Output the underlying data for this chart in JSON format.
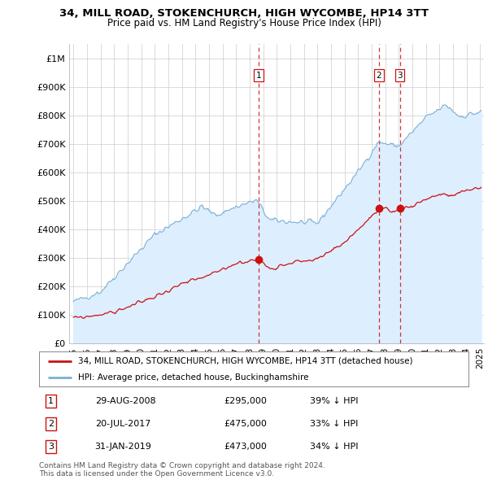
{
  "title": "34, MILL ROAD, STOKENCHURCH, HIGH WYCOMBE, HP14 3TT",
  "subtitle": "Price paid vs. HM Land Registry's House Price Index (HPI)",
  "legend_line1": "34, MILL ROAD, STOKENCHURCH, HIGH WYCOMBE, HP14 3TT (detached house)",
  "legend_line2": "HPI: Average price, detached house, Buckinghamshire",
  "footer": "Contains HM Land Registry data © Crown copyright and database right 2024.\nThis data is licensed under the Open Government Licence v3.0.",
  "transactions": [
    {
      "id": 1,
      "date": "29-AUG-2008",
      "date_num": 2008.66,
      "price": 295000,
      "hpi_pct": "39% ↓ HPI"
    },
    {
      "id": 2,
      "date": "20-JUL-2017",
      "date_num": 2017.55,
      "price": 475000,
      "hpi_pct": "33% ↓ HPI"
    },
    {
      "id": 3,
      "date": "31-JAN-2019",
      "date_num": 2019.08,
      "price": 473000,
      "hpi_pct": "34% ↓ HPI"
    }
  ],
  "hpi_color": "#7bafd4",
  "hpi_fill_color": "#ddeeff",
  "price_color": "#cc1111",
  "vline_color": "#cc1111",
  "background_color": "#ffffff",
  "grid_color": "#cccccc",
  "ylim": [
    0,
    1050000
  ],
  "yticks": [
    0,
    100000,
    200000,
    300000,
    400000,
    500000,
    600000,
    700000,
    800000,
    900000,
    1000000
  ],
  "xlim_start": 1994.7,
  "xlim_end": 2025.3
}
